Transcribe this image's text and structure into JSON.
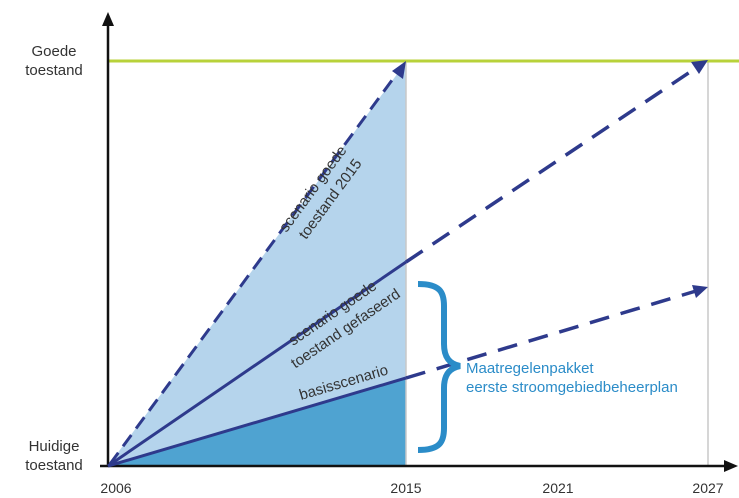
{
  "y_axis": {
    "top_label": [
      "Goede",
      "toestand"
    ],
    "bottom_label": [
      "Huidige",
      "toestand"
    ]
  },
  "x_axis": {
    "ticks": [
      "2006",
      "2015",
      "2021",
      "2027"
    ]
  },
  "scenarios": [
    {
      "lines": [
        "scenario goede",
        "toestand 2015"
      ]
    },
    {
      "lines": [
        "scenario goede",
        "toestand gefaseerd"
      ]
    },
    {
      "lines": [
        "basisscenario"
      ]
    }
  ],
  "bracket_note": [
    "Maatregelenpakket",
    "eerste stroomgebiedbeheerplan"
  ],
  "colors": {
    "target_line": "#B8D23A",
    "arrow": "#2E3A8C",
    "fill_light": "#B5D4EC",
    "fill_dark": "#4FA3D1",
    "bracket": "#2B8CC8",
    "axis": "#111111",
    "grid": "#C8C8C8"
  },
  "icons": {
    "bracket": "curly-brace-icon"
  }
}
